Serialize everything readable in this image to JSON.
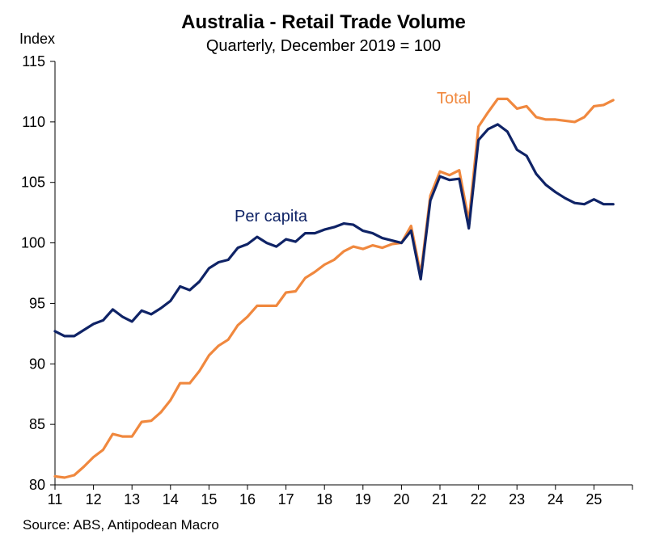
{
  "chart_data": {
    "type": "line",
    "title": "Australia - Retail Trade Volume",
    "subtitle": "Quarterly, December 2019 = 100",
    "ylabel": "Index",
    "xlabel": "",
    "source": "Source: ABS, Antipodean Macro",
    "ylim": [
      80,
      115
    ],
    "yticks": [
      80,
      85,
      90,
      95,
      100,
      105,
      110,
      115
    ],
    "xlim": [
      2011,
      2026
    ],
    "xticks": [
      "11",
      "12",
      "13",
      "14",
      "15",
      "16",
      "17",
      "18",
      "19",
      "20",
      "21",
      "22",
      "23",
      "24",
      "25"
    ],
    "grid": false,
    "legend": "inline labels",
    "colors": {
      "per_capita": "#0f2366",
      "total": "#f0883e"
    },
    "x": [
      2011.0,
      2011.25,
      2011.5,
      2011.75,
      2012.0,
      2012.25,
      2012.5,
      2012.75,
      2013.0,
      2013.25,
      2013.5,
      2013.75,
      2014.0,
      2014.25,
      2014.5,
      2014.75,
      2015.0,
      2015.25,
      2015.5,
      2015.75,
      2016.0,
      2016.25,
      2016.5,
      2016.75,
      2017.0,
      2017.25,
      2017.5,
      2017.75,
      2018.0,
      2018.25,
      2018.5,
      2018.75,
      2019.0,
      2019.25,
      2019.5,
      2019.75,
      2020.0,
      2020.25,
      2020.5,
      2020.75,
      2021.0,
      2021.25,
      2021.5,
      2021.75,
      2022.0,
      2022.25,
      2022.5,
      2022.75,
      2023.0,
      2023.25,
      2023.5,
      2023.75,
      2024.0,
      2024.25,
      2024.5,
      2024.75,
      2025.0,
      2025.25,
      2025.5
    ],
    "series": [
      {
        "name": "Total",
        "values": [
          80.7,
          80.6,
          80.8,
          81.5,
          82.3,
          82.9,
          84.2,
          84.0,
          84.0,
          85.2,
          85.3,
          86.0,
          87.0,
          88.4,
          88.4,
          89.4,
          90.7,
          91.5,
          92.0,
          93.2,
          93.9,
          94.8,
          94.8,
          94.8,
          95.9,
          96.0,
          97.1,
          97.6,
          98.2,
          98.6,
          99.3,
          99.7,
          99.5,
          99.8,
          99.6,
          99.9,
          100.0,
          101.4,
          97.4,
          103.9,
          105.9,
          105.6,
          106.0,
          101.8,
          109.6,
          110.8,
          111.9,
          111.9,
          111.1,
          111.3,
          110.4,
          110.2,
          110.2,
          110.1,
          110.0,
          110.4,
          111.3,
          111.4,
          111.8
        ]
      },
      {
        "name": "Per capita",
        "values": [
          92.7,
          92.3,
          92.3,
          92.8,
          93.3,
          93.6,
          94.5,
          93.9,
          93.5,
          94.4,
          94.1,
          94.6,
          95.2,
          96.4,
          96.1,
          96.8,
          97.9,
          98.4,
          98.6,
          99.6,
          99.9,
          100.5,
          100.0,
          99.7,
          100.3,
          100.1,
          100.8,
          100.8,
          101.1,
          101.3,
          101.6,
          101.5,
          101.0,
          100.8,
          100.4,
          100.2,
          100.0,
          101.0,
          97.0,
          103.5,
          105.5,
          105.2,
          105.3,
          101.2,
          108.5,
          109.4,
          109.8,
          109.2,
          107.7,
          107.2,
          105.7,
          104.8,
          104.2,
          103.7,
          103.3,
          103.2,
          103.6,
          103.2,
          103.2
        ]
      }
    ],
    "labels": [
      {
        "series": "Total",
        "text": "Total"
      },
      {
        "series": "Per capita",
        "text": "Per capita"
      }
    ]
  }
}
